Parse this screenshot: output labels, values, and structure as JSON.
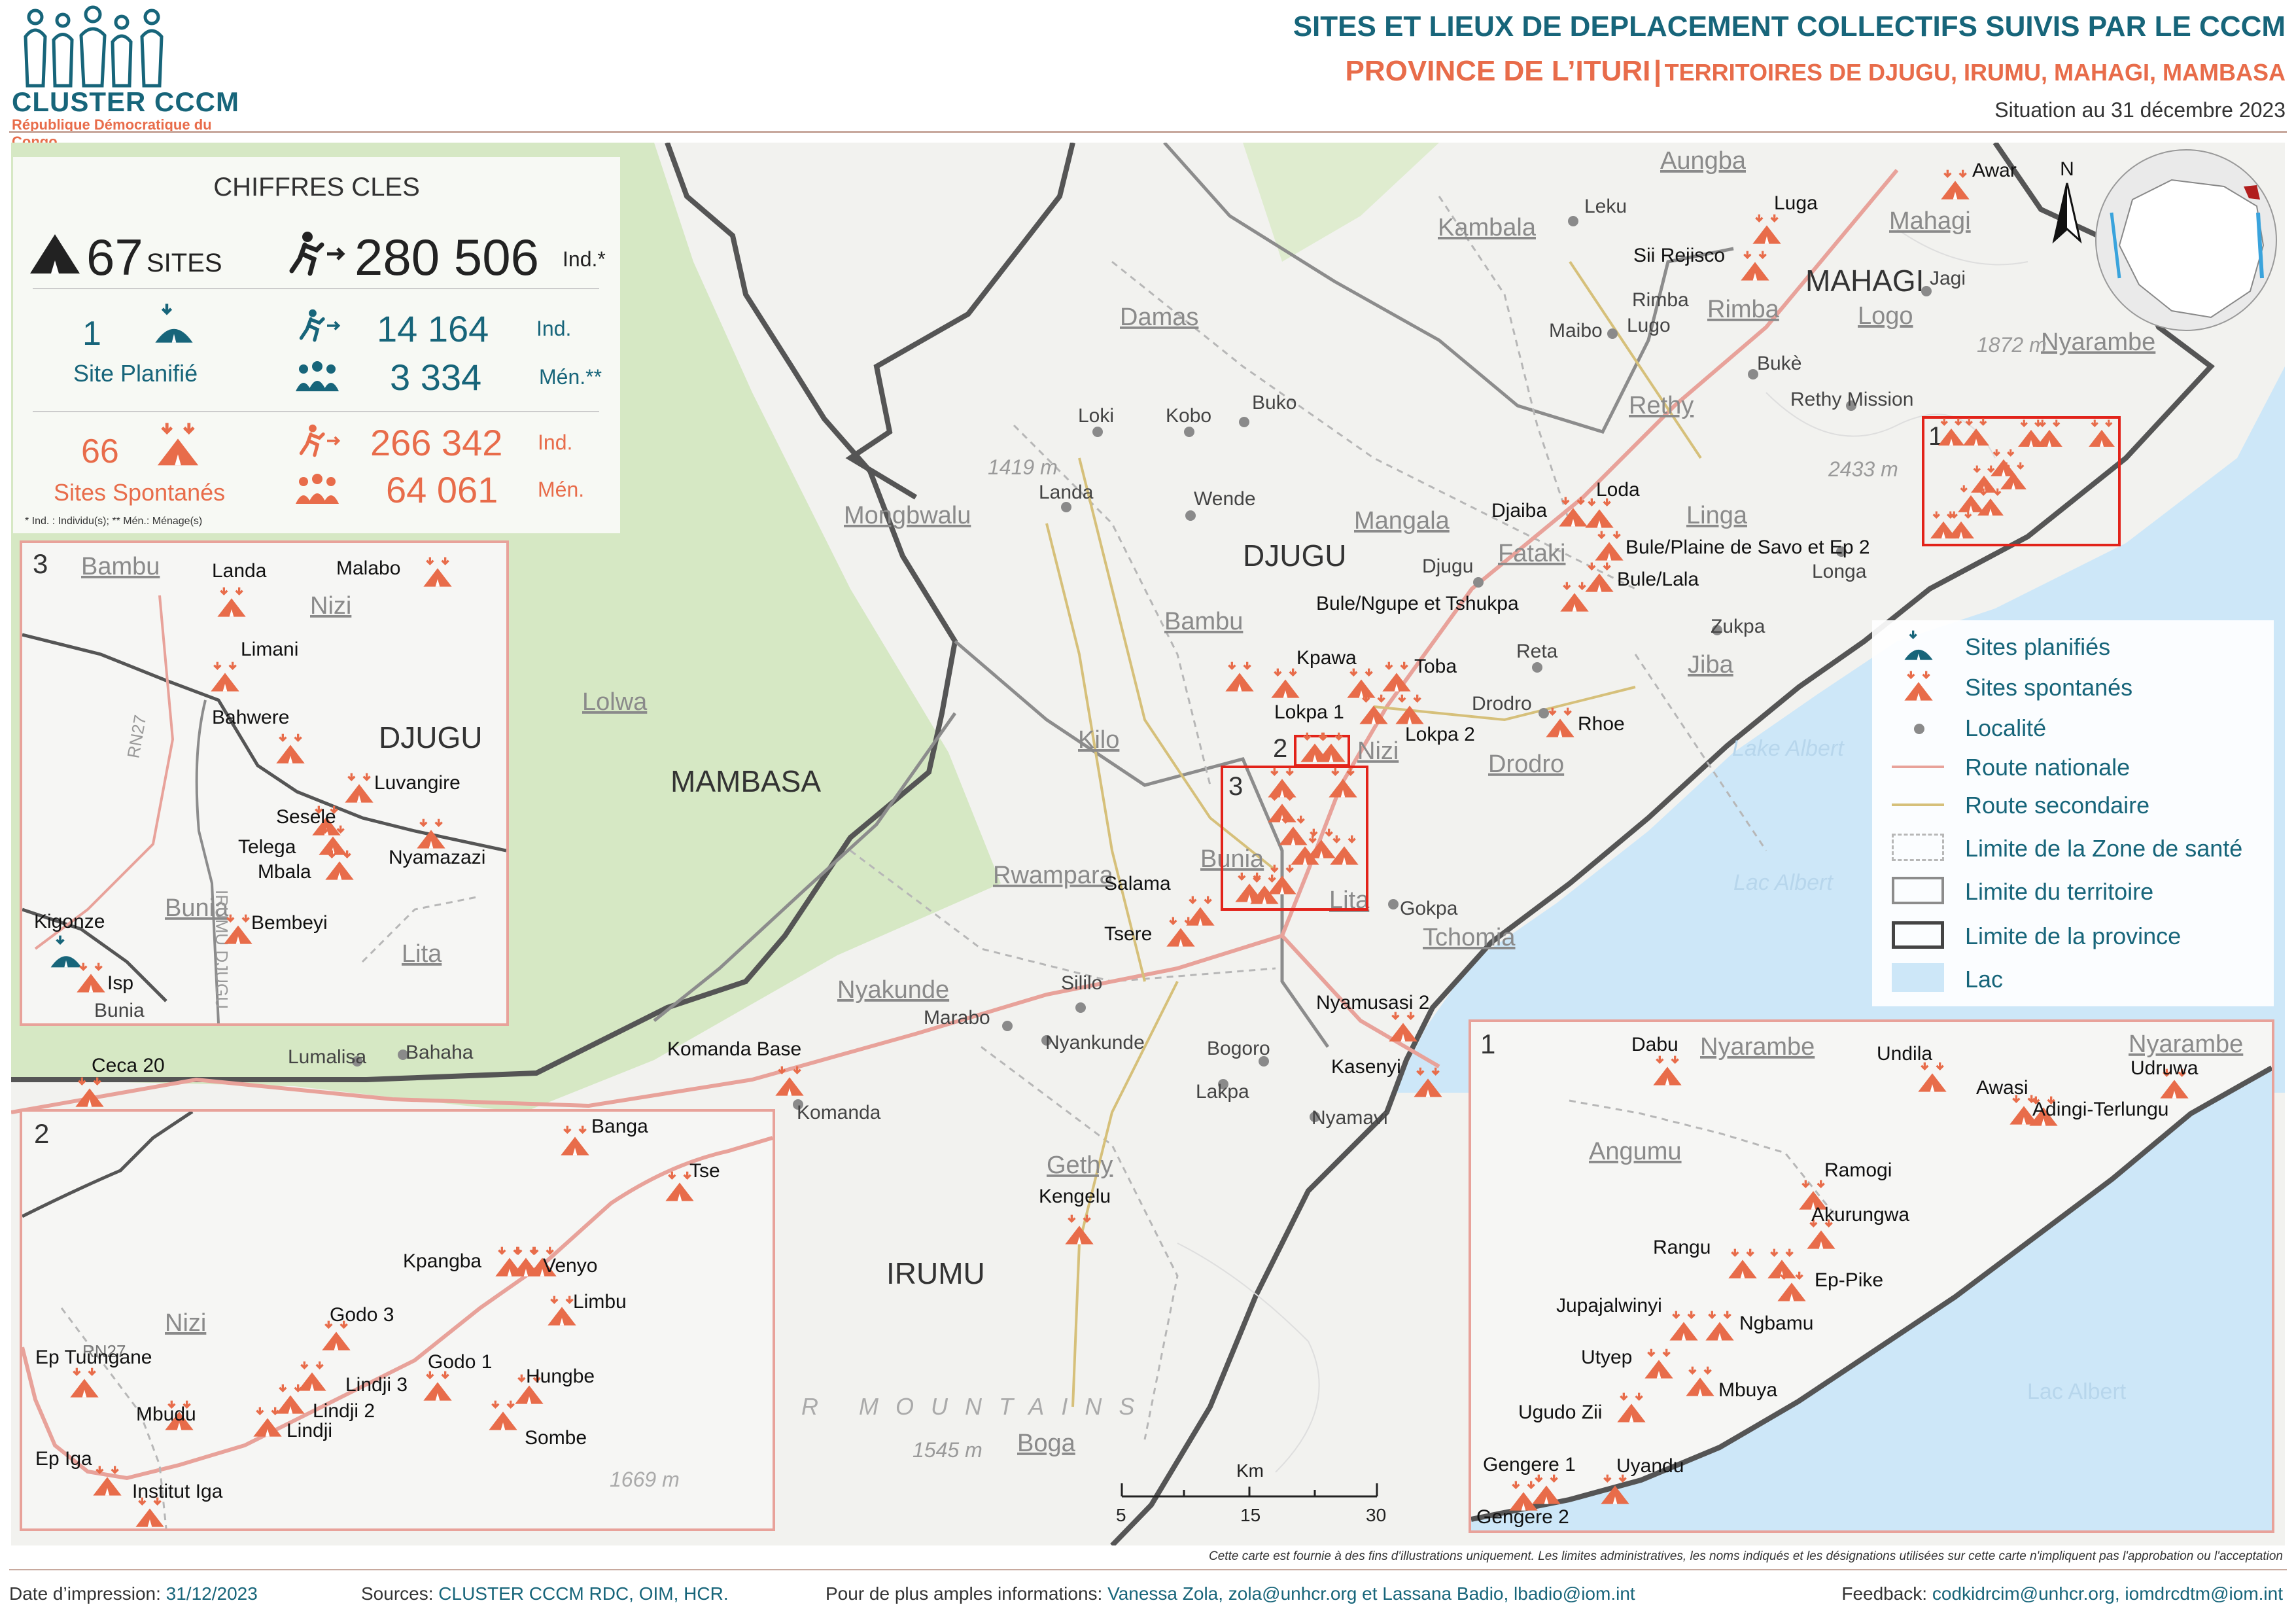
{
  "header": {
    "org": "CLUSTER CCCM",
    "org_sub": "République Démocratique du Congo",
    "title": "SITES ET LIEUX DE DEPLACEMENT COLLECTIFS SUIVIS PAR LE CCCM",
    "province": "PROVINCE DE L’ITURI",
    "sep": "|",
    "territories": "TERRITOIRES DE DJUGU, IRUMU, MAHAGI, MAMBASA",
    "situation": "Situation au 31 décembre 2023"
  },
  "key_figures": {
    "title": "CHIFFRES CLES",
    "sites_count": "67",
    "sites_label": "SITES",
    "ind_total": "280 506",
    "ind_total_unit": "Ind.*",
    "planned_count": "1",
    "planned_label": "Site Planifié",
    "planned_ind": "14 164",
    "planned_ind_unit": "Ind.",
    "planned_hh": "3 334",
    "planned_hh_unit": "Mén.**",
    "spont_count": "66",
    "spont_label": "Sites Spontanés",
    "spont_ind": "266 342",
    "spont_ind_unit": "Ind.",
    "spont_hh": "64 061",
    "spont_hh_unit": "Mén.",
    "footnote": "* Ind. : Individu(s); ** Mén.: Ménage(s)"
  },
  "legend": {
    "items": [
      "Sites planifiés",
      "Sites spontanés",
      "Localité",
      "Route nationale",
      "Route secondaire",
      "Limite de la Zone de santé",
      "Limite du territoire",
      "Limite de la province",
      "Lac"
    ]
  },
  "scale": {
    "unit": "Km",
    "ticks": [
      "5",
      "15",
      "30"
    ]
  },
  "north": "N",
  "disclaimer": "Cette carte est fournie à des fins d'illustrations uniquement. Les limites administratives, les noms indiqués et les désignations utilisées sur cette carte n'impliquent pas l'approbation ou l'acceptation",
  "footer": {
    "date_label": "Date d’impression:",
    "date": "31/12/2023",
    "sources_label": "Sources:",
    "sources": "CLUSTER CCCM RDC, OIM, HCR.",
    "info_label": "Pour de plus amples informations:",
    "info": "Vanessa Zola, zola@unhcr.org et Lassana Badio, lbadio@iom.int",
    "feedback_label": "Feedback:",
    "feedback": "codkidrcim@unhcr.org, iomdrcdtm@iom.int"
  },
  "territories": [
    "DJUGU",
    "MAHAGI",
    "MAMBASA",
    "IRUMU"
  ],
  "health_zones": [
    "Aungba",
    "Kambala",
    "Mahagi",
    "Damas",
    "Rimba",
    "Logo",
    "Nyarambe",
    "Rethy",
    "Mongbwalu",
    "Mangala",
    "Linga",
    "Fataki",
    "Bambu",
    "Lolwa",
    "Kilo",
    "Nizi",
    "Jiba",
    "Drodro",
    "Rwampara",
    "Bunia",
    "Tchomia",
    "Nyakunde",
    "Gethy",
    "Boga",
    "Lita"
  ],
  "localities": [
    "Leku",
    "Jagi",
    "Maibo",
    "Bukè",
    "Loki",
    "Kobo",
    "Buko",
    "Landa",
    "Wende",
    "Djugu",
    "Reta",
    "Drodro",
    "Zukpa",
    "Longa",
    "Gokpa",
    "Sililo",
    "Marabo",
    "Nyankunde",
    "Bogoro",
    "Lakpa",
    "Nyamavi",
    "Komanda",
    "Lumalisa",
    "Bahaha",
    "Rimba",
    "Lugo",
    "Rethy Mission"
  ],
  "terrain_labels": [
    "1419 m",
    "1872 m",
    "2433 m",
    "1545 m",
    "1669 m",
    "R MOUNTAINS",
    "Lake Albert",
    "Lac Albert"
  ],
  "main_sites": [
    "Awar",
    "Luga",
    "Sii Rejisco",
    "Loda",
    "Djaiba",
    "Bule/Plaine de Savo et Ep 2",
    "Bule/Lala",
    "Bule/Ngupe et Tshukpa",
    "Kpawa",
    "Toba",
    "Lokpa 1",
    "Lokpa 2",
    "Rhoe",
    "Salama",
    "Tsere",
    "Nyamusasi 2",
    "Kasenyi",
    "Komanda Base",
    "Kengelu",
    "Ceca 20"
  ],
  "inset3": {
    "num": "3",
    "territory": "DJUGU",
    "zones": [
      "Bambu",
      "Nizi",
      "Bunia",
      "Lita"
    ],
    "localities": [
      "Bunia"
    ],
    "road": "RN27",
    "boundary": "IRUMU DJUGU",
    "sites": [
      "Landa",
      "Malabo",
      "Limani",
      "Bahwere",
      "Luvangire",
      "Sesele",
      "Telega",
      "Nyamazazi",
      "Mbala",
      "Bembeyi",
      "Kigonze",
      "Isp"
    ]
  },
  "inset2": {
    "num": "2",
    "zones": [
      "Nizi"
    ],
    "road": "RN27",
    "terrain": "1669 m",
    "sites": [
      "Banga",
      "Tse",
      "Kpangba",
      "Venyo",
      "Limbu",
      "Godo 3",
      "Ep Tuungane",
      "Lindji 3",
      "Godo 1",
      "Hungbe",
      "Lindji 2",
      "Mbudu",
      "Lindji",
      "Sombe",
      "Ep Iga",
      "Institut Iga"
    ]
  },
  "inset1": {
    "num": "1",
    "zones": [
      "Nyarambe",
      "Angumu"
    ],
    "lake": "Lac Albert",
    "sites": [
      "Dabu",
      "Undila",
      "Udruwa",
      "Awasi",
      "Adingi-Terlungu",
      "Ramogi",
      "Akurungwa",
      "Rangu",
      "Ep-Pike",
      "Jupajalwinyi",
      "Ngbamu",
      "Utyep",
      "Mbuya",
      "Ugudo Zii",
      "Gengere 1",
      "Uyandu",
      "Gengere 2"
    ]
  },
  "colors": {
    "teal": "#17657a",
    "orange": "#e86c4a",
    "inset_border": "#e86c4a",
    "frame": "#c8a99e",
    "land": "#f2f2ef",
    "green": "#d6e8c4",
    "lake": "#cde7f8",
    "lake_deep": "#9dd3ef",
    "road_national": "#e8a29a",
    "road_secondary": "#d6c07a"
  },
  "icons": [
    "logo-people-icon",
    "camp-icon",
    "runner-icon",
    "planned-site-icon",
    "spontaneous-site-icon",
    "household-icon",
    "north-arrow-icon",
    "locator-map-icon"
  ]
}
